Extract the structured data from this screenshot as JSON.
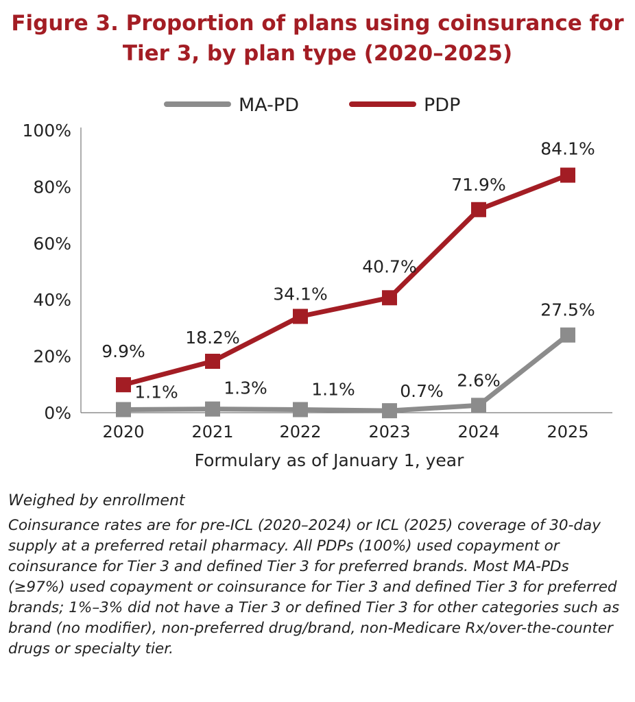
{
  "title": {
    "line1": "Figure 3. Proportion of plans using coinsurance for",
    "line2": "Tier 3, by plan type (2020–2025)"
  },
  "chart_data": {
    "type": "line",
    "categories": [
      "2020",
      "2021",
      "2022",
      "2023",
      "2024",
      "2025"
    ],
    "series": [
      {
        "name": "MA-PD",
        "color": "#8c8c8c",
        "values": [
          1.1,
          1.3,
          1.1,
          0.7,
          2.6,
          27.5
        ],
        "labels": [
          "1.1%",
          "1.3%",
          "1.1%",
          "0.7%",
          "2.6%",
          "27.5%"
        ]
      },
      {
        "name": "PDP",
        "color": "#a31d24",
        "values": [
          9.9,
          18.2,
          34.1,
          40.7,
          71.9,
          84.1
        ],
        "labels": [
          "9.9%",
          "18.2%",
          "34.1%",
          "40.7%",
          "71.9%",
          "84.1%"
        ]
      }
    ],
    "xlabel": "Formulary as of January 1, year",
    "ylabel": "",
    "ylim": [
      0,
      100
    ],
    "yticks": [
      "0%",
      "20%",
      "40%",
      "60%",
      "80%",
      "100%"
    ],
    "legend": "top",
    "grid": false
  },
  "notes": {
    "weighted": "Weighed by enrollment",
    "footnote": "Coinsurance rates are for pre-ICL (2020–2024) or ICL (2025) coverage of 30-day supply at a preferred retail pharmacy. All PDPs (100%) used copayment or coinsurance for Tier 3 and defined Tier 3 for preferred brands. Most MA-PDs (≥97%) used copayment or coinsurance for Tier 3 and defined Tier 3 for preferred brands; 1%–3% did not have a Tier 3 or defined Tier 3 for other categories such as brand (no modifier), non-preferred drug/brand, non-Medicare Rx/over-the-counter drugs or specialty tier."
  }
}
